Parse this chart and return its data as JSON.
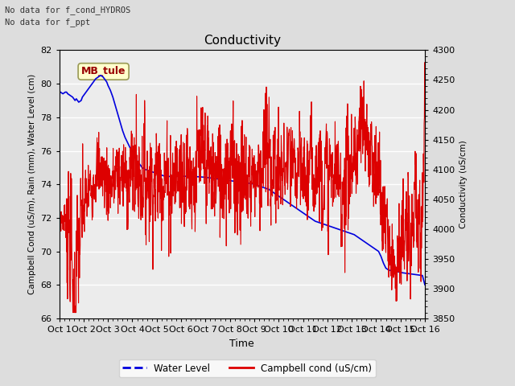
{
  "title": "Conductivity",
  "xlabel": "Time",
  "ylabel_left": "Campbell Cond (uS/m), Rain (mm), Water Level (cm)",
  "ylabel_right": "Conductivity (uS/cm)",
  "ylim_left": [
    66,
    82
  ],
  "ylim_right": [
    3850,
    4300
  ],
  "yticks_left": [
    66,
    68,
    70,
    72,
    74,
    76,
    78,
    80,
    82
  ],
  "yticks_right": [
    3850,
    3900,
    3950,
    4000,
    4050,
    4100,
    4150,
    4200,
    4250,
    4300
  ],
  "xlim": [
    0,
    15
  ],
  "xtick_labels": [
    "Oct 1",
    "Oct 2",
    "Oct 3",
    "Oct 4",
    "Oct 5",
    "Oct 6",
    "Oct 7",
    "Oct 8",
    "Oct 9",
    "Oct 10",
    "Oct 11",
    "Oct 12",
    "Oct 13",
    "Oct 14",
    "Oct 15",
    "Oct 16"
  ],
  "note1": "No data for f_cond_HYDROS",
  "note2": "No data for f_ppt",
  "station_label": "MB_tule",
  "fig_facecolor": "#dddddd",
  "plot_bg_color": "#ececec",
  "water_level_color": "#0000dd",
  "campbell_color": "#dd0000",
  "legend_bg": "#ffffcc",
  "legend_border": "#aaaaaa",
  "water_level_x": [
    0.0,
    0.05,
    0.1,
    0.15,
    0.2,
    0.25,
    0.3,
    0.35,
    0.4,
    0.45,
    0.5,
    0.55,
    0.6,
    0.65,
    0.7,
    0.75,
    0.8,
    0.85,
    0.9,
    0.95,
    1.0,
    1.05,
    1.1,
    1.15,
    1.2,
    1.25,
    1.3,
    1.35,
    1.4,
    1.45,
    1.5,
    1.55,
    1.6,
    1.65,
    1.7,
    1.75,
    1.8,
    1.85,
    1.9,
    1.95,
    2.0,
    2.1,
    2.2,
    2.3,
    2.4,
    2.5,
    2.6,
    2.7,
    2.8,
    2.9,
    3.0,
    3.05,
    3.1,
    3.15,
    3.2,
    3.3,
    3.4,
    3.5,
    3.6,
    3.7,
    3.8,
    3.9,
    4.0,
    4.1,
    4.2,
    4.3,
    4.4,
    4.5,
    4.6,
    4.7,
    4.8,
    4.9,
    5.0,
    5.1,
    5.2,
    5.3,
    5.4,
    5.5,
    5.6,
    5.7,
    5.8,
    5.9,
    6.0,
    6.1,
    6.2,
    6.3,
    6.4,
    6.5,
    6.6,
    6.7,
    6.8,
    6.9,
    7.0,
    7.1,
    7.2,
    7.3,
    7.4,
    7.5,
    7.6,
    7.7,
    7.8,
    7.9,
    8.0,
    8.1,
    8.2,
    8.3,
    8.4,
    8.5,
    8.6,
    8.7,
    8.8,
    8.9,
    9.0,
    9.1,
    9.2,
    9.3,
    9.4,
    9.5,
    9.6,
    9.7,
    9.8,
    9.9,
    10.0,
    10.1,
    10.2,
    10.3,
    10.4,
    10.5,
    10.6,
    10.7,
    10.8,
    10.9,
    11.0,
    11.1,
    11.2,
    11.3,
    11.4,
    11.5,
    11.6,
    11.7,
    11.8,
    11.9,
    12.0,
    12.1,
    12.2,
    12.3,
    12.4,
    12.5,
    12.6,
    12.7,
    12.8,
    12.9,
    13.0,
    13.02,
    13.05,
    13.1,
    13.2,
    13.3,
    13.4,
    13.5,
    13.6,
    13.7,
    13.8,
    13.9,
    14.0,
    14.1,
    14.2,
    14.3,
    14.4,
    14.5,
    14.6,
    14.7,
    14.8,
    14.9,
    15.0
  ],
  "water_level_y": [
    79.5,
    79.5,
    79.45,
    79.4,
    79.45,
    79.5,
    79.5,
    79.4,
    79.35,
    79.3,
    79.25,
    79.2,
    79.1,
    79.0,
    79.1,
    79.0,
    78.9,
    78.95,
    79.0,
    79.2,
    79.3,
    79.4,
    79.5,
    79.6,
    79.7,
    79.8,
    79.9,
    80.0,
    80.1,
    80.2,
    80.3,
    80.35,
    80.4,
    80.45,
    80.5,
    80.45,
    80.4,
    80.3,
    80.2,
    80.1,
    79.9,
    79.6,
    79.2,
    78.7,
    78.2,
    77.7,
    77.2,
    76.8,
    76.5,
    76.2,
    76.0,
    75.8,
    75.6,
    75.5,
    75.4,
    75.2,
    75.0,
    74.9,
    74.85,
    74.8,
    74.75,
    74.7,
    74.65,
    74.6,
    74.55,
    74.5,
    74.48,
    74.47,
    74.47,
    74.47,
    74.47,
    74.47,
    74.47,
    74.48,
    74.48,
    74.48,
    74.47,
    74.47,
    74.46,
    74.45,
    74.44,
    74.43,
    74.42,
    74.4,
    74.38,
    74.36,
    74.34,
    74.32,
    74.3,
    74.28,
    74.26,
    74.24,
    74.22,
    74.2,
    74.18,
    74.16,
    74.14,
    74.12,
    74.1,
    74.08,
    74.06,
    74.04,
    74.0,
    73.95,
    73.9,
    73.85,
    73.8,
    73.75,
    73.7,
    73.6,
    73.5,
    73.4,
    73.3,
    73.2,
    73.1,
    73.0,
    72.9,
    72.8,
    72.7,
    72.6,
    72.5,
    72.4,
    72.3,
    72.2,
    72.1,
    72.0,
    71.9,
    71.8,
    71.75,
    71.7,
    71.65,
    71.6,
    71.55,
    71.5,
    71.45,
    71.4,
    71.35,
    71.3,
    71.25,
    71.2,
    71.15,
    71.1,
    71.05,
    71.0,
    70.9,
    70.8,
    70.7,
    70.6,
    70.5,
    70.4,
    70.3,
    70.2,
    70.1,
    70.08,
    70.05,
    70.0,
    69.7,
    69.3,
    69.0,
    68.9,
    68.85,
    68.82,
    68.8,
    68.78,
    68.75,
    68.72,
    68.7,
    68.68,
    68.66,
    68.64,
    68.62,
    68.6,
    68.58,
    68.56,
    68.0
  ],
  "campbell_kx": [
    0.0,
    0.3,
    0.4,
    0.5,
    0.55,
    0.6,
    0.65,
    0.7,
    0.75,
    0.8,
    0.85,
    0.9,
    0.95,
    1.0,
    1.1,
    1.2,
    1.3,
    1.4,
    1.5,
    1.6,
    1.7,
    1.8,
    1.9,
    2.0,
    2.1,
    2.2,
    2.3,
    2.4,
    2.5,
    2.6,
    2.7,
    2.8,
    2.9,
    3.0,
    3.1,
    3.15,
    3.2,
    3.3,
    3.4,
    3.5,
    3.6,
    3.7,
    3.8,
    3.9,
    4.0,
    4.1,
    4.2,
    4.3,
    4.4,
    4.5,
    4.6,
    4.7,
    4.8,
    4.9,
    5.0,
    5.1,
    5.2,
    5.3,
    5.4,
    5.5,
    5.6,
    5.7,
    5.8,
    5.9,
    6.0,
    6.1,
    6.2,
    6.3,
    6.4,
    6.5,
    6.6,
    6.7,
    6.8,
    6.9,
    7.0,
    7.1,
    7.2,
    7.3,
    7.4,
    7.5,
    7.6,
    7.7,
    7.8,
    7.9,
    8.0,
    8.1,
    8.2,
    8.3,
    8.4,
    8.5,
    8.6,
    8.7,
    8.8,
    8.9,
    9.0,
    9.1,
    9.2,
    9.3,
    9.4,
    9.5,
    9.6,
    9.7,
    9.8,
    9.9,
    10.0,
    10.1,
    10.2,
    10.3,
    10.4,
    10.5,
    10.6,
    10.7,
    10.8,
    10.9,
    11.0,
    11.1,
    11.2,
    11.3,
    11.4,
    11.5,
    11.6,
    11.7,
    11.8,
    11.9,
    12.0,
    12.1,
    12.2,
    12.3,
    12.4,
    12.5,
    12.6,
    12.7,
    12.8,
    12.9,
    13.0,
    13.1,
    13.2,
    13.25,
    13.3,
    13.4,
    13.5,
    13.6,
    13.7,
    13.8,
    13.9,
    14.0,
    14.1,
    14.2,
    14.3,
    14.4,
    14.5,
    14.6,
    14.7,
    14.8,
    14.9,
    15.0
  ],
  "campbell_ky": [
    4020,
    4015,
    4000,
    3960,
    3900,
    3875,
    3880,
    3920,
    3960,
    3970,
    3980,
    3990,
    4010,
    4030,
    4050,
    4060,
    4070,
    4090,
    4100,
    4105,
    4100,
    4090,
    4085,
    4080,
    4075,
    4075,
    4080,
    4090,
    4095,
    4090,
    4085,
    4085,
    4090,
    4095,
    4100,
    4100,
    4095,
    4090,
    4090,
    4090,
    4090,
    4085,
    4080,
    4080,
    4085,
    4090,
    4095,
    4090,
    4085,
    4080,
    4085,
    4090,
    4095,
    4090,
    4095,
    4100,
    4100,
    4095,
    4090,
    4085,
    4095,
    4100,
    4105,
    4110,
    4110,
    4100,
    4095,
    4090,
    4090,
    4085,
    4090,
    4100,
    4110,
    4115,
    4110,
    4105,
    4095,
    4090,
    4085,
    4080,
    4080,
    4085,
    4090,
    4090,
    4090,
    4095,
    4100,
    4110,
    4120,
    4130,
    4120,
    4110,
    4100,
    4095,
    4090,
    4090,
    4095,
    4100,
    4105,
    4100,
    4095,
    4090,
    4085,
    4085,
    4085,
    4090,
    4095,
    4100,
    4105,
    4110,
    4110,
    4105,
    4100,
    4095,
    4090,
    4090,
    4090,
    4090,
    4085,
    4080,
    4075,
    4080,
    4090,
    4100,
    4110,
    4120,
    4130,
    4140,
    4150,
    4155,
    4150,
    4140,
    4130,
    4115,
    4100,
    4080,
    4060,
    4040,
    4020,
    4000,
    3980,
    3970,
    3960,
    3960,
    3965,
    3970,
    3975,
    3980,
    3985,
    3990,
    3995,
    4000,
    4005,
    4010,
    4015,
    4180
  ]
}
